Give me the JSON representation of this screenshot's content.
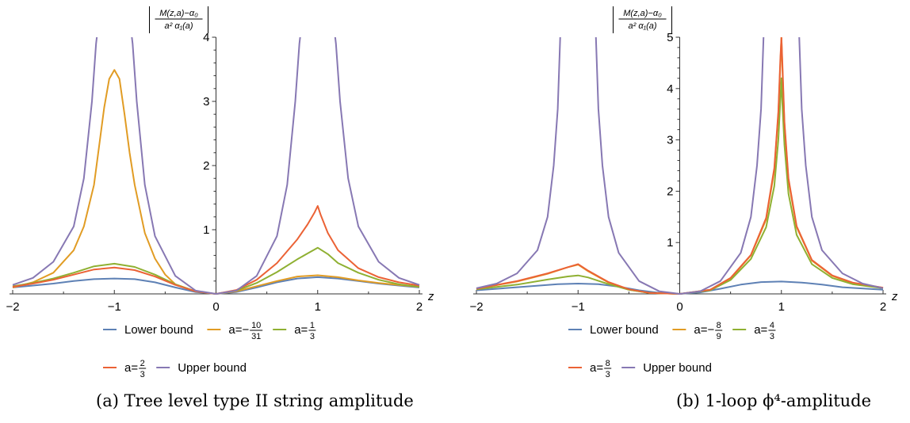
{
  "chart_data": [
    {
      "type": "line",
      "caption": "(a) Tree level type II string amplitude",
      "xlabel": "z",
      "ylabel": {
        "numerator": "M(z,a)−α₀",
        "denominator": "a² α₁(a)"
      },
      "xlim": [
        -2,
        2
      ],
      "ylim": [
        0,
        4
      ],
      "xticks": [
        "−2",
        "−1",
        "0",
        "1",
        "2"
      ],
      "yticks": [
        "1",
        "2",
        "3",
        "4"
      ],
      "legend_position": "bottom",
      "series": [
        {
          "name": "Lower bound",
          "color": "#5E81B5",
          "x": [
            -2,
            -1.8,
            -1.6,
            -1.4,
            -1.2,
            -1,
            -0.8,
            -0.6,
            -0.4,
            -0.2,
            0,
            0.2,
            0.4,
            0.6,
            0.8,
            1,
            1.2,
            1.4,
            1.6,
            1.8,
            2
          ],
          "y": [
            0.1,
            0.13,
            0.16,
            0.2,
            0.23,
            0.24,
            0.23,
            0.18,
            0.1,
            0.03,
            0,
            0.03,
            0.1,
            0.18,
            0.24,
            0.26,
            0.24,
            0.2,
            0.16,
            0.13,
            0.1
          ]
        },
        {
          "name": "a=−10/31",
          "label_prefix": "a=−",
          "frac_num": "10",
          "frac_den": "31",
          "color": "#E19C24",
          "x": [
            -2,
            -1.8,
            -1.6,
            -1.4,
            -1.3,
            -1.2,
            -1.15,
            -1.1,
            -1.05,
            -1,
            -0.95,
            -0.9,
            -0.85,
            -0.8,
            -0.7,
            -0.6,
            -0.5,
            -0.4,
            -0.2,
            0,
            0.2,
            0.4,
            0.6,
            0.8,
            1,
            1.2,
            1.4,
            1.6,
            1.8,
            2
          ],
          "y": [
            0.1,
            0.18,
            0.33,
            0.68,
            1.05,
            1.7,
            2.3,
            2.9,
            3.35,
            3.49,
            3.35,
            2.8,
            2.2,
            1.7,
            0.95,
            0.55,
            0.3,
            0.15,
            0.04,
            0,
            0.04,
            0.12,
            0.2,
            0.27,
            0.29,
            0.26,
            0.21,
            0.17,
            0.14,
            0.11
          ]
        },
        {
          "name": "a=1/3",
          "label_prefix": "a=",
          "frac_num": "1",
          "frac_den": "3",
          "color": "#8FB032",
          "x": [
            -2,
            -1.8,
            -1.6,
            -1.4,
            -1.2,
            -1,
            -0.8,
            -0.6,
            -0.4,
            -0.2,
            0,
            0.2,
            0.4,
            0.6,
            0.8,
            0.9,
            1,
            1.1,
            1.2,
            1.4,
            1.6,
            1.8,
            2
          ],
          "y": [
            0.12,
            0.17,
            0.24,
            0.33,
            0.43,
            0.47,
            0.42,
            0.3,
            0.15,
            0.04,
            0,
            0.05,
            0.17,
            0.34,
            0.54,
            0.63,
            0.72,
            0.62,
            0.48,
            0.33,
            0.22,
            0.15,
            0.11
          ]
        },
        {
          "name": "a=2/3",
          "label_prefix": "a=",
          "frac_num": "2",
          "frac_den": "3",
          "color": "#EB6235",
          "x": [
            -2,
            -1.8,
            -1.6,
            -1.4,
            -1.2,
            -1,
            -0.8,
            -0.6,
            -0.4,
            -0.2,
            0,
            0.2,
            0.4,
            0.6,
            0.8,
            0.9,
            0.97,
            1,
            1.03,
            1.1,
            1.2,
            1.4,
            1.6,
            1.8,
            2
          ],
          "y": [
            0.11,
            0.16,
            0.22,
            0.3,
            0.38,
            0.41,
            0.37,
            0.27,
            0.14,
            0.04,
            0,
            0.06,
            0.22,
            0.48,
            0.85,
            1.08,
            1.27,
            1.37,
            1.23,
            0.95,
            0.68,
            0.4,
            0.26,
            0.18,
            0.13
          ]
        },
        {
          "name": "Upper bound",
          "color": "#8778B3",
          "x": [
            -2,
            -1.8,
            -1.6,
            -1.4,
            -1.3,
            -1.22,
            -1.18,
            -1.15,
            -0.85,
            -0.82,
            -0.78,
            -0.7,
            -0.6,
            -0.4,
            -0.2,
            0,
            0.2,
            0.4,
            0.6,
            0.7,
            0.78,
            0.82,
            0.85,
            1.15,
            1.18,
            1.22,
            1.3,
            1.4,
            1.6,
            1.8,
            2
          ],
          "y": [
            0.14,
            0.25,
            0.5,
            1.05,
            1.8,
            3.0,
            3.9,
            4.3,
            4.3,
            3.9,
            3.0,
            1.7,
            0.9,
            0.28,
            0.05,
            0,
            0.05,
            0.28,
            0.9,
            1.7,
            3.0,
            3.9,
            4.3,
            4.3,
            3.9,
            3.0,
            1.8,
            1.05,
            0.5,
            0.25,
            0.14
          ]
        }
      ]
    },
    {
      "type": "line",
      "caption": "(b) 1-loop ϕ⁴-amplitude",
      "xlabel": "z",
      "ylabel": {
        "numerator": "M(z,a)−α₀",
        "denominator": "a² α₁(a)"
      },
      "xlim": [
        -2,
        2
      ],
      "ylim": [
        0,
        5
      ],
      "xticks": [
        "−2",
        "−1",
        "0",
        "1",
        "2"
      ],
      "yticks": [
        "1",
        "2",
        "3",
        "4",
        "5"
      ],
      "legend_position": "bottom",
      "series": [
        {
          "name": "Lower bound",
          "color": "#5E81B5",
          "x": [
            -2,
            -1.6,
            -1.2,
            -1,
            -0.8,
            -0.6,
            -0.4,
            -0.2,
            0,
            0.2,
            0.4,
            0.6,
            0.8,
            1,
            1.2,
            1.4,
            1.6,
            2
          ],
          "y": [
            0.07,
            0.13,
            0.19,
            0.2,
            0.19,
            0.14,
            0.07,
            0.02,
            0,
            0.03,
            0.1,
            0.18,
            0.23,
            0.24,
            0.22,
            0.18,
            0.13,
            0.08
          ]
        },
        {
          "name": "a=−8/9",
          "label_prefix": "a=−",
          "frac_num": "8",
          "frac_den": "9",
          "color": "#E19C24",
          "x": [
            -2,
            -1.6,
            -1.3,
            -1.1,
            -1,
            -0.9,
            -0.7,
            -0.5,
            -0.3,
            0,
            0.3,
            0.5,
            0.7,
            0.85,
            0.93,
            0.97,
            0.99,
            1,
            1.01,
            1.03,
            1.07,
            1.15,
            1.3,
            1.5,
            1.7,
            2
          ],
          "y": [
            0.1,
            0.24,
            0.39,
            0.52,
            0.57,
            0.44,
            0.22,
            0.08,
            0.02,
            0,
            0.08,
            0.3,
            0.75,
            1.45,
            2.4,
            3.5,
            4.5,
            5.0,
            4.4,
            3.3,
            2.2,
            1.3,
            0.65,
            0.35,
            0.21,
            0.12
          ]
        },
        {
          "name": "a=4/3",
          "label_prefix": "a=",
          "frac_num": "4",
          "frac_den": "3",
          "color": "#8FB032",
          "x": [
            -2,
            -1.6,
            -1.3,
            -1.1,
            -1,
            -0.9,
            -0.7,
            -0.5,
            -0.3,
            0,
            0.3,
            0.5,
            0.7,
            0.85,
            0.93,
            0.97,
            0.99,
            1,
            1.01,
            1.03,
            1.07,
            1.15,
            1.3,
            1.5,
            1.7,
            2
          ],
          "y": [
            0.09,
            0.18,
            0.28,
            0.34,
            0.36,
            0.32,
            0.19,
            0.08,
            0.02,
            0,
            0.07,
            0.27,
            0.68,
            1.3,
            2.1,
            3.0,
            3.8,
            4.2,
            3.7,
            2.9,
            1.95,
            1.15,
            0.58,
            0.31,
            0.19,
            0.11
          ]
        },
        {
          "name": "a=8/3",
          "label_prefix": "a=",
          "frac_num": "8",
          "frac_den": "3",
          "color": "#EB6235",
          "x": [
            -2,
            -1.6,
            -1.3,
            -1.1,
            -1,
            -0.9,
            -0.7,
            -0.5,
            -0.3,
            0,
            0.3,
            0.5,
            0.7,
            0.85,
            0.93,
            0.97,
            0.99,
            1,
            1.01,
            1.03,
            1.07,
            1.15,
            1.3,
            1.5,
            1.7,
            2
          ],
          "y": [
            0.1,
            0.25,
            0.4,
            0.52,
            0.58,
            0.45,
            0.23,
            0.09,
            0.02,
            0,
            0.08,
            0.31,
            0.76,
            1.48,
            2.45,
            3.55,
            4.6,
            5.0,
            4.5,
            3.35,
            2.25,
            1.32,
            0.66,
            0.36,
            0.22,
            0.12
          ]
        },
        {
          "name": "Upper bound",
          "color": "#8778B3",
          "x": [
            -2,
            -1.8,
            -1.6,
            -1.4,
            -1.3,
            -1.24,
            -1.2,
            -1.17,
            -0.83,
            -0.8,
            -0.76,
            -0.7,
            -0.6,
            -0.4,
            -0.2,
            0,
            0.2,
            0.4,
            0.6,
            0.7,
            0.76,
            0.8,
            0.83,
            1.17,
            1.2,
            1.24,
            1.3,
            1.4,
            1.6,
            1.8,
            2
          ],
          "y": [
            0.11,
            0.2,
            0.4,
            0.85,
            1.5,
            2.5,
            3.6,
            5.3,
            5.3,
            3.6,
            2.5,
            1.5,
            0.8,
            0.25,
            0.05,
            0,
            0.05,
            0.25,
            0.8,
            1.5,
            2.5,
            3.6,
            5.3,
            5.3,
            3.6,
            2.5,
            1.5,
            0.85,
            0.4,
            0.2,
            0.11
          ]
        }
      ]
    }
  ]
}
